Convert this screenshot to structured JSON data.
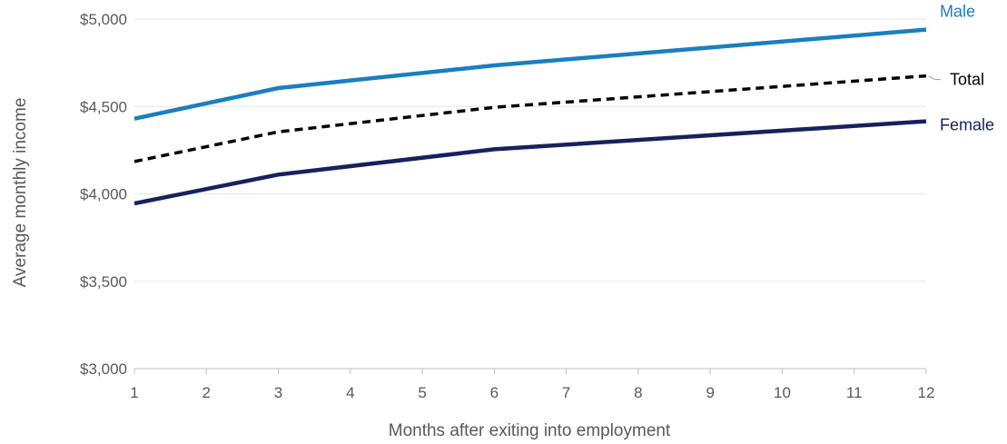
{
  "chart_data": {
    "type": "line",
    "title": "",
    "xlabel": "Months after exiting into employment",
    "ylabel": "Average monthly income",
    "x_ticks": [
      1,
      2,
      3,
      4,
      5,
      6,
      7,
      8,
      9,
      10,
      11,
      12
    ],
    "y_ticks": [
      3000,
      3500,
      4000,
      4500,
      5000
    ],
    "y_tick_labels": [
      "$3,000",
      "$3,500",
      "$4,000",
      "$4,500",
      "$5,000"
    ],
    "xlim": [
      1,
      12
    ],
    "ylim": [
      3000,
      5000
    ],
    "grid": "horizontal",
    "legend": "direct-labels-right",
    "series": [
      {
        "name": "Male",
        "color": "#1a7fc1",
        "style": "solid",
        "x": [
          1,
          3,
          6,
          12
        ],
        "y": [
          4430,
          4605,
          4735,
          4940
        ]
      },
      {
        "name": "Total",
        "color": "#000000",
        "style": "dashed",
        "x": [
          1,
          3,
          6,
          12
        ],
        "y": [
          4185,
          4355,
          4495,
          4675
        ]
      },
      {
        "name": "Female",
        "color": "#16215e",
        "style": "solid",
        "x": [
          1,
          3,
          6,
          12
        ],
        "y": [
          3945,
          4110,
          4255,
          4415
        ]
      }
    ]
  }
}
